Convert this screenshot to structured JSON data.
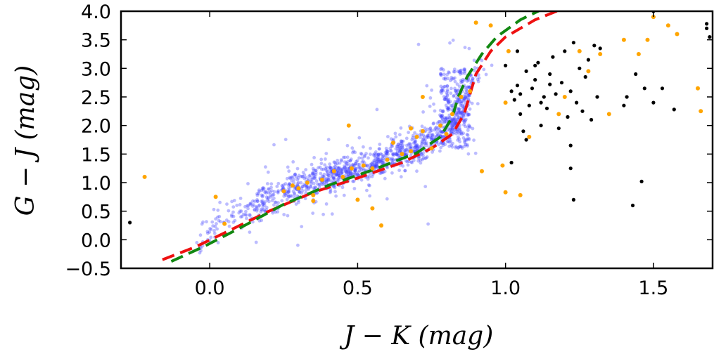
{
  "chart_data": {
    "type": "scatter",
    "title": "",
    "xlabel": "J − K (mag)",
    "ylabel": "G − J (mag)",
    "xlim": [
      -0.3,
      1.7
    ],
    "ylim": [
      -0.5,
      4.0
    ],
    "x_ticks": [
      0.0,
      0.5,
      1.0,
      1.5
    ],
    "x_tick_labels": [
      "0.0",
      "0.5",
      "1.0",
      "1.5"
    ],
    "y_ticks": [
      -0.5,
      0.0,
      0.5,
      1.0,
      1.5,
      2.0,
      2.5,
      3.0,
      3.5,
      4.0
    ],
    "y_tick_labels": [
      "−0.5",
      "0.0",
      "0.5",
      "1.0",
      "1.5",
      "2.0",
      "2.5",
      "3.0",
      "3.5",
      "4.0"
    ],
    "grid": false,
    "colors": {
      "cloud": "#4040ff",
      "orange": "#ffa500",
      "black": "#000000",
      "red_curve": "#ee1111",
      "green_curve": "#118811"
    },
    "background_cloud": {
      "name": "field stars (dense cloud)",
      "count": 1400,
      "trend_x": [
        -0.05,
        0.1,
        0.25,
        0.4,
        0.55,
        0.7,
        0.8,
        0.86,
        0.88,
        0.9
      ],
      "trend_y": [
        0.0,
        0.45,
        0.85,
        1.1,
        1.3,
        1.6,
        1.9,
        2.3,
        2.7,
        3.0
      ]
    },
    "series": [
      {
        "name": "orange points",
        "points": [
          [
            -0.22,
            1.1
          ],
          [
            0.02,
            0.75
          ],
          [
            0.05,
            0.28
          ],
          [
            0.25,
            0.85
          ],
          [
            0.28,
            0.95
          ],
          [
            0.3,
            0.9
          ],
          [
            0.33,
            1.0
          ],
          [
            0.35,
            0.78
          ],
          [
            0.38,
            1.05
          ],
          [
            0.42,
            1.2
          ],
          [
            0.45,
            1.1
          ],
          [
            0.48,
            1.25
          ],
          [
            0.5,
            0.7
          ],
          [
            0.52,
            1.3
          ],
          [
            0.55,
            1.25
          ],
          [
            0.58,
            0.25
          ],
          [
            0.6,
            1.4
          ],
          [
            0.62,
            1.7
          ],
          [
            0.65,
            1.5
          ],
          [
            0.68,
            1.55
          ],
          [
            0.7,
            1.8
          ],
          [
            0.72,
            1.9
          ],
          [
            0.75,
            1.6
          ],
          [
            0.78,
            2.0
          ],
          [
            0.8,
            1.85
          ],
          [
            0.82,
            2.2
          ],
          [
            0.85,
            2.5
          ],
          [
            0.88,
            2.6
          ],
          [
            0.9,
            3.8
          ],
          [
            0.95,
            3.75
          ],
          [
            0.72,
            2.5
          ],
          [
            0.68,
            1.95
          ],
          [
            0.47,
            2.0
          ],
          [
            0.55,
            0.55
          ],
          [
            0.35,
            0.68
          ],
          [
            1.0,
            2.4
          ],
          [
            1.01,
            3.3
          ],
          [
            1.0,
            0.83
          ],
          [
            1.05,
            0.78
          ],
          [
            1.2,
            2.5
          ],
          [
            1.25,
            3.3
          ],
          [
            1.28,
            2.95
          ],
          [
            1.32,
            3.25
          ],
          [
            1.35,
            2.2
          ],
          [
            1.4,
            3.5
          ],
          [
            1.45,
            3.25
          ],
          [
            1.48,
            3.5
          ],
          [
            1.5,
            3.9
          ],
          [
            1.55,
            3.75
          ],
          [
            1.58,
            3.6
          ],
          [
            1.65,
            2.65
          ],
          [
            1.66,
            2.25
          ],
          [
            1.08,
            1.8
          ],
          [
            1.18,
            2.2
          ],
          [
            0.99,
            1.3
          ],
          [
            0.92,
            1.2
          ]
        ]
      },
      {
        "name": "black points",
        "points": [
          [
            -0.27,
            0.3
          ],
          [
            1.0,
            3.05
          ],
          [
            1.02,
            2.6
          ],
          [
            1.03,
            2.45
          ],
          [
            1.04,
            2.7
          ],
          [
            1.05,
            2.2
          ],
          [
            1.06,
            1.9
          ],
          [
            1.07,
            2.95
          ],
          [
            1.08,
            2.35
          ],
          [
            1.09,
            2.65
          ],
          [
            1.1,
            2.8
          ],
          [
            1.11,
            3.1
          ],
          [
            1.12,
            2.0
          ],
          [
            1.13,
            2.5
          ],
          [
            1.14,
            2.3
          ],
          [
            1.15,
            2.9
          ],
          [
            1.16,
            3.2
          ],
          [
            1.17,
            2.55
          ],
          [
            1.18,
            1.95
          ],
          [
            1.19,
            2.75
          ],
          [
            1.2,
            3.3
          ],
          [
            1.21,
            2.15
          ],
          [
            1.22,
            2.6
          ],
          [
            1.23,
            3.45
          ],
          [
            1.24,
            2.4
          ],
          [
            1.25,
            3.0
          ],
          [
            1.26,
            2.25
          ],
          [
            1.27,
            2.85
          ],
          [
            1.28,
            3.15
          ],
          [
            1.29,
            2.1
          ],
          [
            1.3,
            3.4
          ],
          [
            1.31,
            2.5
          ],
          [
            1.32,
            3.35
          ],
          [
            1.22,
            1.65
          ],
          [
            1.22,
            1.25
          ],
          [
            1.23,
            0.7
          ],
          [
            1.02,
            1.35
          ],
          [
            1.07,
            1.75
          ],
          [
            1.43,
            0.6
          ],
          [
            1.46,
            1.02
          ],
          [
            1.4,
            2.35
          ],
          [
            1.41,
            2.5
          ],
          [
            1.44,
            2.9
          ],
          [
            1.47,
            2.65
          ],
          [
            1.5,
            2.4
          ],
          [
            1.53,
            2.65
          ],
          [
            1.5,
            4.0
          ],
          [
            1.57,
            2.28
          ],
          [
            1.68,
            3.78
          ],
          [
            1.68,
            3.7
          ],
          [
            1.69,
            3.55
          ],
          [
            1.04,
            3.3
          ],
          [
            1.1,
            3.05
          ],
          [
            1.15,
            2.72
          ],
          [
            1.05,
            2.55
          ],
          [
            1.12,
            2.4
          ]
        ]
      },
      {
        "name": "red dashed model",
        "style": "dashed",
        "points": [
          [
            -0.16,
            -0.35
          ],
          [
            -0.05,
            -0.13
          ],
          [
            0.05,
            0.12
          ],
          [
            0.2,
            0.5
          ],
          [
            0.35,
            0.83
          ],
          [
            0.5,
            1.08
          ],
          [
            0.65,
            1.35
          ],
          [
            0.75,
            1.6
          ],
          [
            0.82,
            1.85
          ],
          [
            0.86,
            2.2
          ],
          [
            0.88,
            2.55
          ],
          [
            0.9,
            2.9
          ],
          [
            0.95,
            3.3
          ],
          [
            1.0,
            3.55
          ],
          [
            1.1,
            3.85
          ],
          [
            1.22,
            4.1
          ]
        ]
      },
      {
        "name": "green dashed model",
        "style": "dashed",
        "points": [
          [
            -0.13,
            -0.38
          ],
          [
            -0.02,
            -0.12
          ],
          [
            0.1,
            0.2
          ],
          [
            0.25,
            0.62
          ],
          [
            0.4,
            0.95
          ],
          [
            0.55,
            1.22
          ],
          [
            0.7,
            1.52
          ],
          [
            0.78,
            1.8
          ],
          [
            0.82,
            2.15
          ],
          [
            0.84,
            2.5
          ],
          [
            0.87,
            2.85
          ],
          [
            0.92,
            3.25
          ],
          [
            0.97,
            3.55
          ],
          [
            1.05,
            3.85
          ],
          [
            1.13,
            4.05
          ]
        ]
      }
    ]
  }
}
